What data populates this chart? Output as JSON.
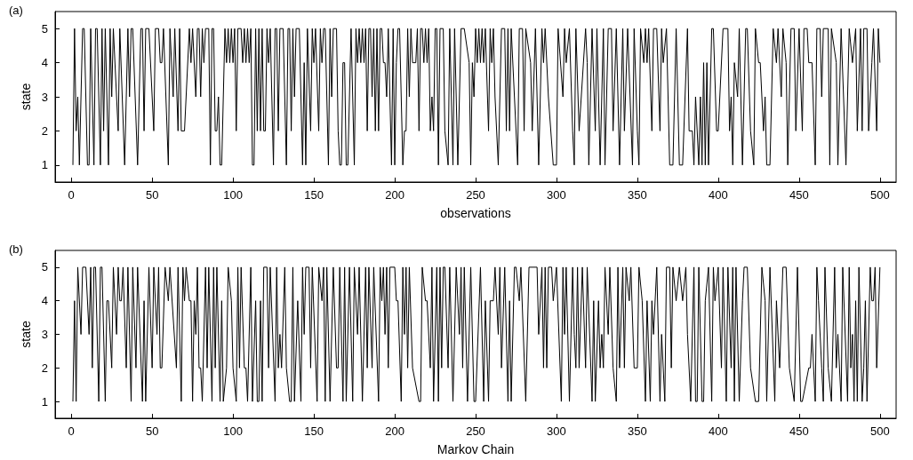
{
  "chart_data": [
    {
      "type": "line",
      "annotations": [
        "(a)"
      ],
      "xlabel": "observations",
      "ylabel": "state",
      "xlim": [
        -10,
        510
      ],
      "xticks": [
        0,
        50,
        100,
        150,
        200,
        250,
        300,
        350,
        400,
        450,
        500
      ],
      "ylim": [
        0.5,
        5.5
      ],
      "yticks": [
        1,
        2,
        3,
        4,
        5
      ],
      "series": [
        {
          "color": "#000000",
          "x": [
            1,
            2,
            3,
            4,
            5,
            7,
            8,
            10,
            11,
            12,
            14,
            15,
            16,
            18,
            19,
            20,
            21,
            23,
            24,
            25,
            26,
            29,
            30,
            33,
            35,
            36,
            37,
            38,
            41,
            43,
            44,
            45,
            46,
            48,
            51,
            52,
            54,
            55,
            56,
            57,
            60,
            61,
            63,
            64,
            66,
            67,
            68,
            70,
            73,
            74,
            75,
            77,
            78,
            79,
            80,
            81,
            82,
            83,
            85,
            86,
            87,
            88,
            89,
            90,
            91,
            92,
            93,
            95,
            96,
            97,
            98,
            99,
            100,
            101,
            102,
            103,
            105,
            106,
            107,
            108,
            109,
            110,
            111,
            112,
            113,
            114,
            115,
            116,
            117,
            118,
            119,
            120,
            121,
            122,
            123,
            125,
            126,
            127,
            128,
            129,
            131,
            133,
            134,
            135,
            136,
            137,
            138,
            139,
            141,
            143,
            144,
            145,
            146,
            148,
            149,
            150,
            151,
            153,
            154,
            155,
            156,
            157,
            159,
            160,
            161,
            162,
            164,
            165,
            166,
            167,
            168,
            169,
            170,
            171,
            173,
            175,
            176,
            177,
            178,
            179,
            180,
            181,
            182,
            183,
            184,
            185,
            186,
            187,
            188,
            189,
            190,
            191,
            192,
            193,
            194,
            195,
            196,
            198,
            199,
            200,
            201,
            202,
            203,
            205,
            206,
            207,
            208,
            209,
            210,
            211,
            212,
            213,
            214,
            215,
            216,
            217,
            218,
            219,
            220,
            221,
            222,
            223,
            224,
            225,
            226,
            227,
            228,
            230,
            231,
            233,
            234,
            236,
            237,
            239,
            241,
            243,
            246,
            247,
            248,
            249,
            250,
            251,
            252,
            253,
            254,
            255,
            256,
            258,
            259,
            260,
            261,
            262,
            264,
            266,
            268,
            269,
            270,
            271,
            272,
            274,
            276,
            277,
            279,
            280,
            281,
            284,
            285,
            287,
            289,
            291,
            292,
            293,
            295,
            298,
            300,
            301,
            304,
            305,
            306,
            308,
            310,
            311,
            312,
            314,
            318,
            319,
            320,
            322,
            324,
            325,
            327,
            329,
            330,
            332,
            334,
            335,
            337,
            339,
            341,
            342,
            344,
            347,
            348,
            350,
            351,
            352,
            354,
            355,
            356,
            357,
            359,
            360,
            362,
            364,
            365,
            366,
            368,
            370,
            372,
            374,
            376,
            378,
            381,
            382,
            384,
            385,
            386,
            388,
            389,
            390,
            391,
            392,
            393,
            394,
            396,
            397,
            399,
            400,
            403,
            406,
            407,
            408,
            409,
            410,
            412,
            413,
            415,
            417,
            418,
            420,
            422,
            423,
            425,
            426,
            428,
            429,
            430,
            432,
            434,
            436,
            437,
            439,
            440,
            442,
            443,
            445,
            447,
            448,
            450,
            452,
            453,
            455,
            456,
            458,
            460,
            461,
            463,
            464,
            465,
            468,
            469,
            470,
            473,
            474,
            476,
            479,
            481,
            483,
            485,
            486,
            488,
            489,
            490,
            492,
            493,
            495,
            496,
            498,
            499,
            500
          ],
          "values": [
            1,
            5,
            2,
            3,
            1,
            5,
            5,
            1,
            1,
            5,
            1,
            5,
            5,
            1,
            5,
            2,
            5,
            1,
            5,
            3,
            5,
            2,
            5,
            1,
            5,
            3,
            5,
            5,
            1,
            5,
            5,
            2,
            5,
            5,
            2,
            5,
            5,
            4,
            4,
            5,
            1,
            5,
            3,
            5,
            2,
            5,
            2,
            2,
            5,
            4,
            5,
            3,
            5,
            5,
            3,
            5,
            4,
            5,
            5,
            1,
            5,
            5,
            2,
            2,
            3,
            1,
            1,
            5,
            4,
            5,
            4,
            5,
            4,
            5,
            2,
            5,
            5,
            4,
            5,
            4,
            5,
            4,
            5,
            1,
            1,
            5,
            2,
            5,
            2,
            5,
            2,
            2,
            5,
            4,
            5,
            1,
            5,
            5,
            2,
            5,
            5,
            1,
            5,
            5,
            2,
            5,
            3,
            5,
            5,
            1,
            4,
            1,
            5,
            2,
            5,
            4,
            5,
            2,
            5,
            4,
            5,
            5,
            1,
            5,
            3,
            5,
            5,
            2,
            1,
            1,
            4,
            4,
            1,
            1,
            5,
            1,
            5,
            4,
            5,
            4,
            5,
            4,
            5,
            2,
            5,
            5,
            3,
            5,
            2,
            5,
            2,
            5,
            5,
            4,
            4,
            3,
            5,
            1,
            5,
            1,
            4,
            5,
            5,
            1,
            2,
            2,
            5,
            3,
            5,
            4,
            4,
            4,
            5,
            2,
            5,
            5,
            4,
            5,
            4,
            5,
            2,
            3,
            2,
            5,
            5,
            1,
            5,
            5,
            2,
            1,
            5,
            1,
            5,
            1,
            5,
            5,
            4,
            1,
            4,
            3,
            5,
            4,
            5,
            4,
            5,
            4,
            5,
            2,
            5,
            4,
            5,
            3,
            1,
            5,
            5,
            2,
            5,
            2,
            5,
            3,
            1,
            5,
            5,
            2,
            5,
            4,
            2,
            5,
            1,
            5,
            4,
            5,
            3,
            1,
            1,
            5,
            3,
            5,
            4,
            5,
            2,
            1,
            5,
            2,
            5,
            4,
            1,
            5,
            2,
            5,
            1,
            5,
            1,
            5,
            5,
            2,
            5,
            1,
            5,
            2,
            5,
            1,
            5,
            2,
            1,
            5,
            4,
            5,
            4,
            5,
            2,
            5,
            5,
            2,
            5,
            4,
            5,
            1,
            1,
            5,
            1,
            1,
            5,
            2,
            2,
            1,
            3,
            1,
            3,
            1,
            4,
            1,
            4,
            1,
            5,
            5,
            2,
            2,
            5,
            5,
            2,
            3,
            1,
            4,
            3,
            5,
            1,
            5,
            5,
            2,
            1,
            5,
            4,
            4,
            2,
            3,
            1,
            1,
            5,
            4,
            5,
            3,
            5,
            4,
            1,
            5,
            5,
            2,
            5,
            2,
            5,
            5,
            4,
            4,
            1,
            5,
            5,
            3,
            5,
            5,
            1,
            5,
            4,
            1,
            5,
            1,
            5,
            4,
            5,
            2,
            5,
            2,
            5,
            5,
            2,
            4,
            5,
            2,
            5,
            4
          ]
        }
      ]
    },
    {
      "type": "line",
      "annotations": [
        "(b)"
      ],
      "xlabel": "Markov Chain",
      "ylabel": "state",
      "xlim": [
        -10,
        510
      ],
      "xticks": [
        0,
        50,
        100,
        150,
        200,
        250,
        300,
        350,
        400,
        450,
        500
      ],
      "ylim": [
        0.5,
        5.5
      ],
      "yticks": [
        1,
        2,
        3,
        4,
        5
      ],
      "series": [
        {
          "color": "#000000",
          "x": [
            1,
            2,
            3,
            4,
            6,
            7,
            9,
            11,
            12,
            13,
            14,
            15,
            17,
            18,
            19,
            21,
            22,
            23,
            25,
            26,
            28,
            29,
            30,
            31,
            32,
            34,
            35,
            37,
            38,
            40,
            41,
            44,
            45,
            46,
            48,
            50,
            51,
            53,
            54,
            55,
            56,
            58,
            60,
            61,
            65,
            66,
            68,
            69,
            70,
            71,
            73,
            74,
            75,
            76,
            77,
            78,
            79,
            80,
            81,
            83,
            84,
            85,
            87,
            88,
            89,
            90,
            92,
            93,
            94,
            96,
            97,
            99,
            100,
            102,
            103,
            104,
            105,
            107,
            108,
            109,
            111,
            112,
            114,
            115,
            116,
            117,
            118,
            119,
            121,
            122,
            123,
            126,
            127,
            128,
            129,
            130,
            132,
            133,
            135,
            136,
            137,
            138,
            140,
            142,
            143,
            144,
            145,
            147,
            148,
            149,
            152,
            153,
            155,
            156,
            157,
            158,
            160,
            162,
            164,
            165,
            166,
            168,
            169,
            170,
            172,
            174,
            175,
            177,
            178,
            180,
            182,
            183,
            184,
            186,
            187,
            190,
            191,
            192,
            193,
            194,
            195,
            196,
            197,
            200,
            201,
            202,
            204,
            205,
            206,
            207,
            208,
            209,
            211,
            215,
            216,
            217,
            219,
            220,
            222,
            223,
            224,
            226,
            227,
            228,
            229,
            230,
            231,
            233,
            234,
            236,
            238,
            240,
            241,
            242,
            243,
            245,
            247,
            249,
            250,
            253,
            255,
            256,
            258,
            259,
            261,
            262,
            264,
            265,
            266,
            268,
            270,
            271,
            272,
            274,
            275,
            277,
            278,
            281,
            283,
            288,
            289,
            291,
            292,
            293,
            294,
            295,
            297,
            298,
            300,
            303,
            304,
            305,
            306,
            308,
            310,
            311,
            312,
            313,
            314,
            316,
            318,
            319,
            322,
            323,
            324,
            326,
            327,
            328,
            329,
            330,
            332,
            333,
            335,
            337,
            338,
            339,
            341,
            342,
            343,
            345,
            346,
            348,
            350,
            351,
            353,
            355,
            356,
            358,
            359,
            360,
            362,
            364,
            365,
            367,
            368,
            370,
            371,
            372,
            374,
            376,
            378,
            380,
            381,
            383,
            385,
            386,
            387,
            388,
            390,
            391,
            392,
            394,
            396,
            397,
            398,
            400,
            402,
            403,
            405,
            406,
            408,
            409,
            410,
            411,
            413,
            415,
            416,
            418,
            420,
            423,
            425,
            427,
            429,
            430,
            432,
            435,
            436,
            438,
            440,
            442,
            444,
            447,
            449,
            451,
            452,
            456,
            457,
            458,
            460,
            461,
            462,
            464,
            465,
            466,
            468,
            470,
            472,
            473,
            474,
            476,
            477,
            480,
            481,
            482,
            483,
            484,
            485,
            486,
            487,
            489,
            490,
            491,
            492,
            494,
            495,
            496,
            497,
            498,
            500
          ],
          "values": [
            1,
            4,
            1,
            5,
            3,
            5,
            5,
            3,
            5,
            2,
            5,
            5,
            1,
            5,
            5,
            1,
            4,
            4,
            2,
            5,
            3,
            5,
            4,
            4,
            5,
            2,
            5,
            1,
            5,
            2,
            5,
            1,
            4,
            1,
            5,
            2,
            5,
            3,
            5,
            2,
            2,
            5,
            4,
            5,
            2,
            5,
            1,
            5,
            4,
            5,
            4,
            4,
            1,
            4,
            3,
            5,
            2,
            2,
            1,
            5,
            2,
            5,
            1,
            5,
            2,
            5,
            1,
            4,
            1,
            2,
            5,
            4,
            2,
            1,
            5,
            2,
            5,
            2,
            2,
            1,
            5,
            1,
            4,
            1,
            1,
            4,
            1,
            5,
            5,
            2,
            5,
            1,
            5,
            2,
            3,
            2,
            5,
            2,
            1,
            1,
            5,
            1,
            4,
            1,
            5,
            3,
            5,
            5,
            2,
            5,
            1,
            5,
            4,
            5,
            1,
            5,
            1,
            5,
            2,
            2,
            5,
            1,
            5,
            1,
            5,
            1,
            5,
            3,
            5,
            1,
            5,
            2,
            5,
            2,
            5,
            1,
            5,
            4,
            5,
            3,
            5,
            2,
            5,
            5,
            4,
            4,
            1,
            5,
            3,
            5,
            2,
            5,
            2,
            1,
            1,
            5,
            4,
            4,
            2,
            5,
            1,
            5,
            1,
            5,
            2,
            5,
            5,
            2,
            5,
            1,
            5,
            3,
            5,
            2,
            5,
            1,
            5,
            1,
            1,
            5,
            1,
            4,
            1,
            4,
            4,
            5,
            3,
            5,
            2,
            5,
            1,
            4,
            1,
            5,
            5,
            4,
            5,
            1,
            5,
            5,
            3,
            5,
            2,
            5,
            2,
            5,
            5,
            4,
            5,
            1,
            5,
            3,
            5,
            1,
            5,
            3,
            2,
            5,
            2,
            5,
            2,
            5,
            1,
            4,
            1,
            4,
            2,
            3,
            2,
            5,
            3,
            5,
            2,
            1,
            5,
            2,
            5,
            2,
            5,
            4,
            5,
            2,
            2,
            5,
            4,
            1,
            4,
            1,
            4,
            3,
            5,
            1,
            3,
            1,
            5,
            5,
            2,
            5,
            4,
            5,
            4,
            5,
            3,
            1,
            5,
            1,
            1,
            5,
            1,
            1,
            4,
            5,
            1,
            5,
            4,
            5,
            2,
            5,
            1,
            5,
            2,
            5,
            1,
            5,
            1,
            4,
            5,
            5,
            2,
            1,
            1,
            5,
            4,
            1,
            5,
            1,
            4,
            2,
            5,
            5,
            2,
            1,
            5,
            1,
            1,
            2,
            2,
            3,
            1,
            5,
            4,
            2,
            1,
            5,
            2,
            1,
            5,
            2,
            3,
            1,
            5,
            1,
            5,
            2,
            3,
            1,
            4,
            1,
            5,
            1,
            2,
            4,
            1,
            5,
            4,
            4,
            5,
            2,
            5
          ]
        }
      ]
    }
  ]
}
